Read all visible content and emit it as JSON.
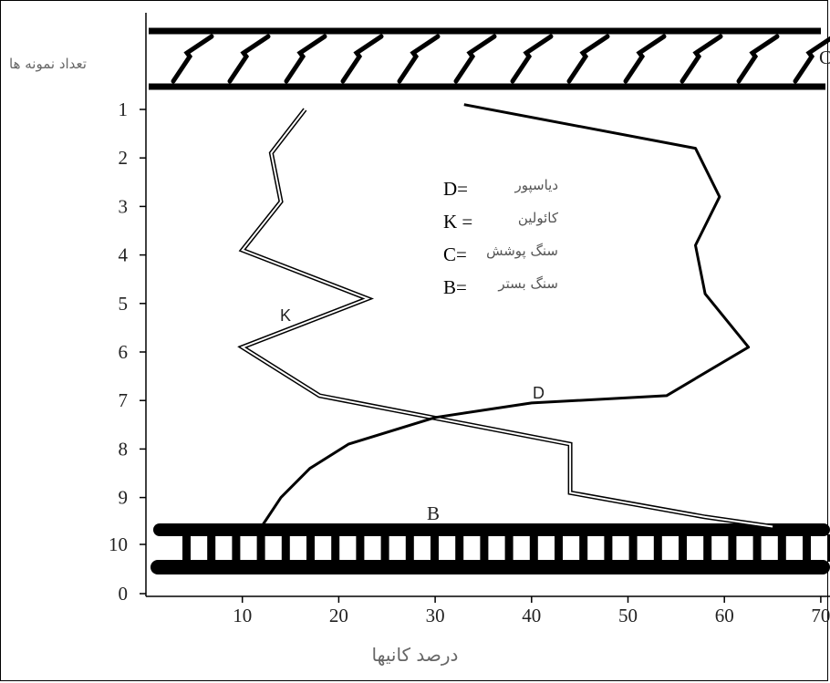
{
  "chart_data": {
    "type": "line",
    "xlabel": "درصد کانیها",
    "ylabel": "تعداد نمونه ها",
    "xlim": [
      0,
      70
    ],
    "ylim": [
      0,
      10
    ],
    "x_ticks": [
      "10",
      "20",
      "30",
      "40",
      "50",
      "60",
      "70"
    ],
    "y_ticks": [
      "0",
      "10",
      "9",
      "8",
      "7",
      "6",
      "5",
      "4",
      "3",
      "2",
      "1"
    ],
    "series": [
      {
        "name": "K",
        "style": "double-line",
        "points": [
          [
            16.5,
            1.0
          ],
          [
            13.0,
            1.9
          ],
          [
            14.0,
            2.9
          ],
          [
            10.0,
            3.9
          ],
          [
            23.0,
            4.9
          ],
          [
            10.0,
            5.9
          ],
          [
            18.0,
            6.9
          ],
          [
            44.0,
            7.9
          ],
          [
            44.0,
            8.9
          ],
          [
            58.0,
            9.4
          ],
          [
            65.0,
            9.6
          ]
        ]
      },
      {
        "name": "D",
        "style": "solid",
        "points": [
          [
            33.0,
            0.9
          ],
          [
            57.0,
            1.8
          ],
          [
            59.5,
            2.8
          ],
          [
            57.0,
            3.8
          ],
          [
            58.0,
            4.8
          ],
          [
            62.5,
            5.9
          ],
          [
            54.0,
            6.9
          ],
          [
            40.0,
            7.05
          ],
          [
            30.0,
            7.35
          ],
          [
            21.0,
            7.9
          ],
          [
            17.0,
            8.4
          ],
          [
            14.0,
            9.0
          ],
          [
            12.0,
            9.6
          ]
        ]
      }
    ],
    "layers": {
      "cover": "C",
      "bedrock": "B"
    },
    "legend": {
      "items": [
        {
          "code": "D=",
          "name": "دیاسپور"
        },
        {
          "code": "K =",
          "name": "کائولین"
        },
        {
          "code": "C=",
          "name": "سنگ پوشش"
        },
        {
          "code": "B=",
          "name": "سنگ بستر"
        }
      ],
      "placement": "upper-middle"
    }
  }
}
